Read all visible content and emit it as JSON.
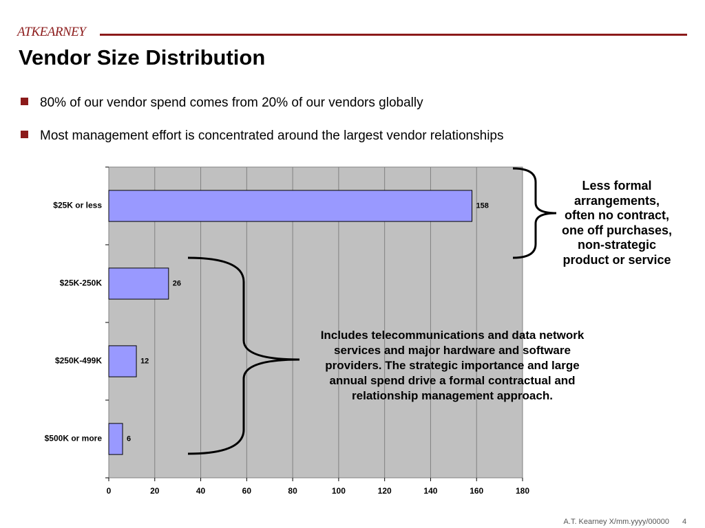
{
  "logo": "ATKEARNEY",
  "title": "Vendor Size Distribution",
  "bullets": [
    "80% of our vendor spend comes from 20% of our vendors globally",
    "Most management effort is concentrated around the largest vendor relationships"
  ],
  "footer": "A.T. Kearney X/mm.yyyy/00000",
  "page_number": "4",
  "chart_data": {
    "type": "bar",
    "orientation": "horizontal",
    "categories": [
      "$25K or less",
      "$25K-250K",
      "$250K-499K",
      "$500K or more"
    ],
    "values": [
      158,
      26,
      12,
      6
    ],
    "color": "#9999ff",
    "xlim": [
      0,
      180
    ],
    "xticks": [
      0,
      20,
      40,
      60,
      80,
      100,
      120,
      140,
      160,
      180
    ],
    "grid": true,
    "annotations": [
      "Less formal arrangements, often no contract, one off purchases, non-strategic product or service",
      "Includes telecommunications and data network services and major hardware and software providers.  The strategic importance and large annual spend drive a formal contractual and relationship management approach."
    ]
  }
}
